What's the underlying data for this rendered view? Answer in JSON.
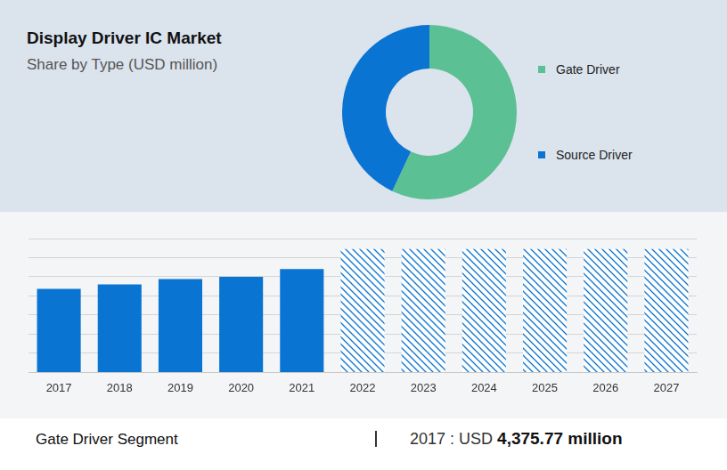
{
  "chart_data": [
    {
      "type": "doughnut",
      "title": "Display Driver IC Market",
      "subtitle": "Share by Type (USD million)",
      "categories": [
        "Gate Driver",
        "Source Driver"
      ],
      "values": [
        57,
        43
      ],
      "colors": [
        "#5bc194",
        "#0a74d2"
      ],
      "legend": "right"
    },
    {
      "type": "bar",
      "categories": [
        "2017",
        "2018",
        "2019",
        "2020",
        "2021",
        "2022",
        "2023",
        "2024",
        "2025",
        "2026",
        "2027"
      ],
      "series": [
        {
          "color": "#0a74d2",
          "marker": "solid",
          "values": [
            4375.77,
            4600,
            4880,
            5000,
            5410,
            null,
            null,
            null,
            null,
            null,
            null
          ]
        },
        {
          "color": "#0a74d2",
          "marker": "hatch",
          "values": [
            null,
            null,
            null,
            null,
            null,
            6450,
            6450,
            6450,
            6450,
            6450,
            6450
          ]
        }
      ],
      "ylim": [
        0,
        7000
      ],
      "yticks": [
        0,
        1000,
        2000,
        3000,
        4000,
        5000,
        6000,
        7000
      ],
      "grid": true,
      "tick_labels": "x"
    }
  ],
  "footer": {
    "label": "Gate Driver Segment",
    "prefix": "2017 : USD",
    "value": "4,375.77 million"
  }
}
